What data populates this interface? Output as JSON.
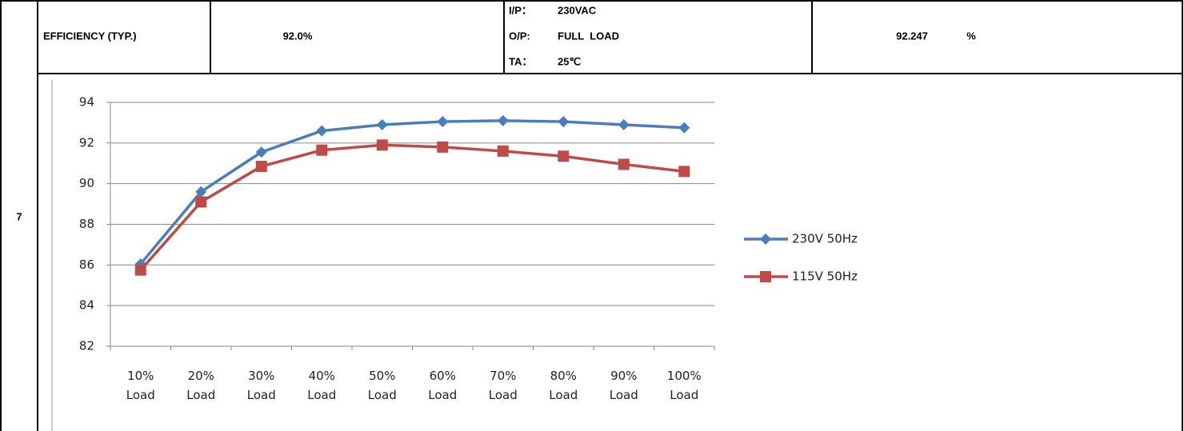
{
  "table": {
    "row_number": "7",
    "item": "EFFICIENCY (TYP.)",
    "spec": "92.0%",
    "conditions": [
      [
        "I/P：",
        "230VAC"
      ],
      [
        "O/P:",
        "FULL  LOAD"
      ],
      [
        "TA：",
        "25℃"
      ]
    ],
    "result": "92.247",
    "unit": "%"
  },
  "chart_data": {
    "type": "line",
    "categories": [
      "10% Load",
      "20% Load",
      "30% Load",
      "40% Load",
      "50% Load",
      "60% Load",
      "70% Load",
      "80% Load",
      "90% Load",
      "100% Load"
    ],
    "series": [
      {
        "name": "230V 50Hz",
        "color": "#4a7ebb",
        "marker": "diamond",
        "values": [
          86.05,
          89.6,
          91.55,
          92.6,
          92.9,
          93.05,
          93.1,
          93.05,
          92.9,
          92.75
        ]
      },
      {
        "name": "115V 50Hz",
        "color": "#be4b48",
        "marker": "square",
        "values": [
          85.75,
          89.1,
          90.85,
          91.65,
          91.9,
          91.8,
          91.6,
          91.35,
          90.95,
          90.6
        ]
      }
    ],
    "ylim": [
      82,
      94
    ],
    "yticks": [
      82,
      84,
      86,
      88,
      90,
      92,
      94
    ],
    "grid": true,
    "legend": "right"
  }
}
